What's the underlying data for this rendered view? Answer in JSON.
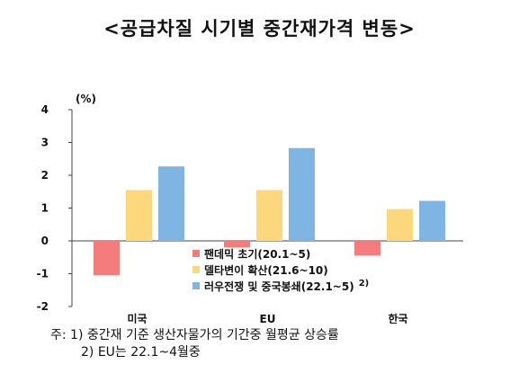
{
  "title": "<공급차질 시기별 중간재가격 변동>",
  "chart_data": {
    "type": "bar",
    "unit": "(%)",
    "categories": [
      "미국",
      "EU",
      "한국"
    ],
    "ylim": [
      -2,
      4
    ],
    "yticks": [
      -2,
      -1,
      0,
      1,
      2,
      3,
      4
    ],
    "grid": false,
    "legend_position": "center",
    "series": [
      {
        "name": "팬데믹 초기(20.1~5)",
        "color": "#f47c7c",
        "values": [
          -1.05,
          -0.2,
          -0.45
        ]
      },
      {
        "name": "델타변이 확산(21.6~10)",
        "color": "#fdd77b",
        "values": [
          1.55,
          1.55,
          0.97
        ]
      },
      {
        "name": "러우전쟁 및 중국봉쇄(22.1~5)",
        "superscript": "2)",
        "color": "#7fb5e3",
        "values": [
          2.27,
          2.83,
          1.22
        ]
      }
    ]
  },
  "notes": {
    "line1": "주:  1)  중간재 기준 생산자물가의 기간중 월평균 상승률",
    "line2": "2)  EU는 22.1~4월중"
  }
}
